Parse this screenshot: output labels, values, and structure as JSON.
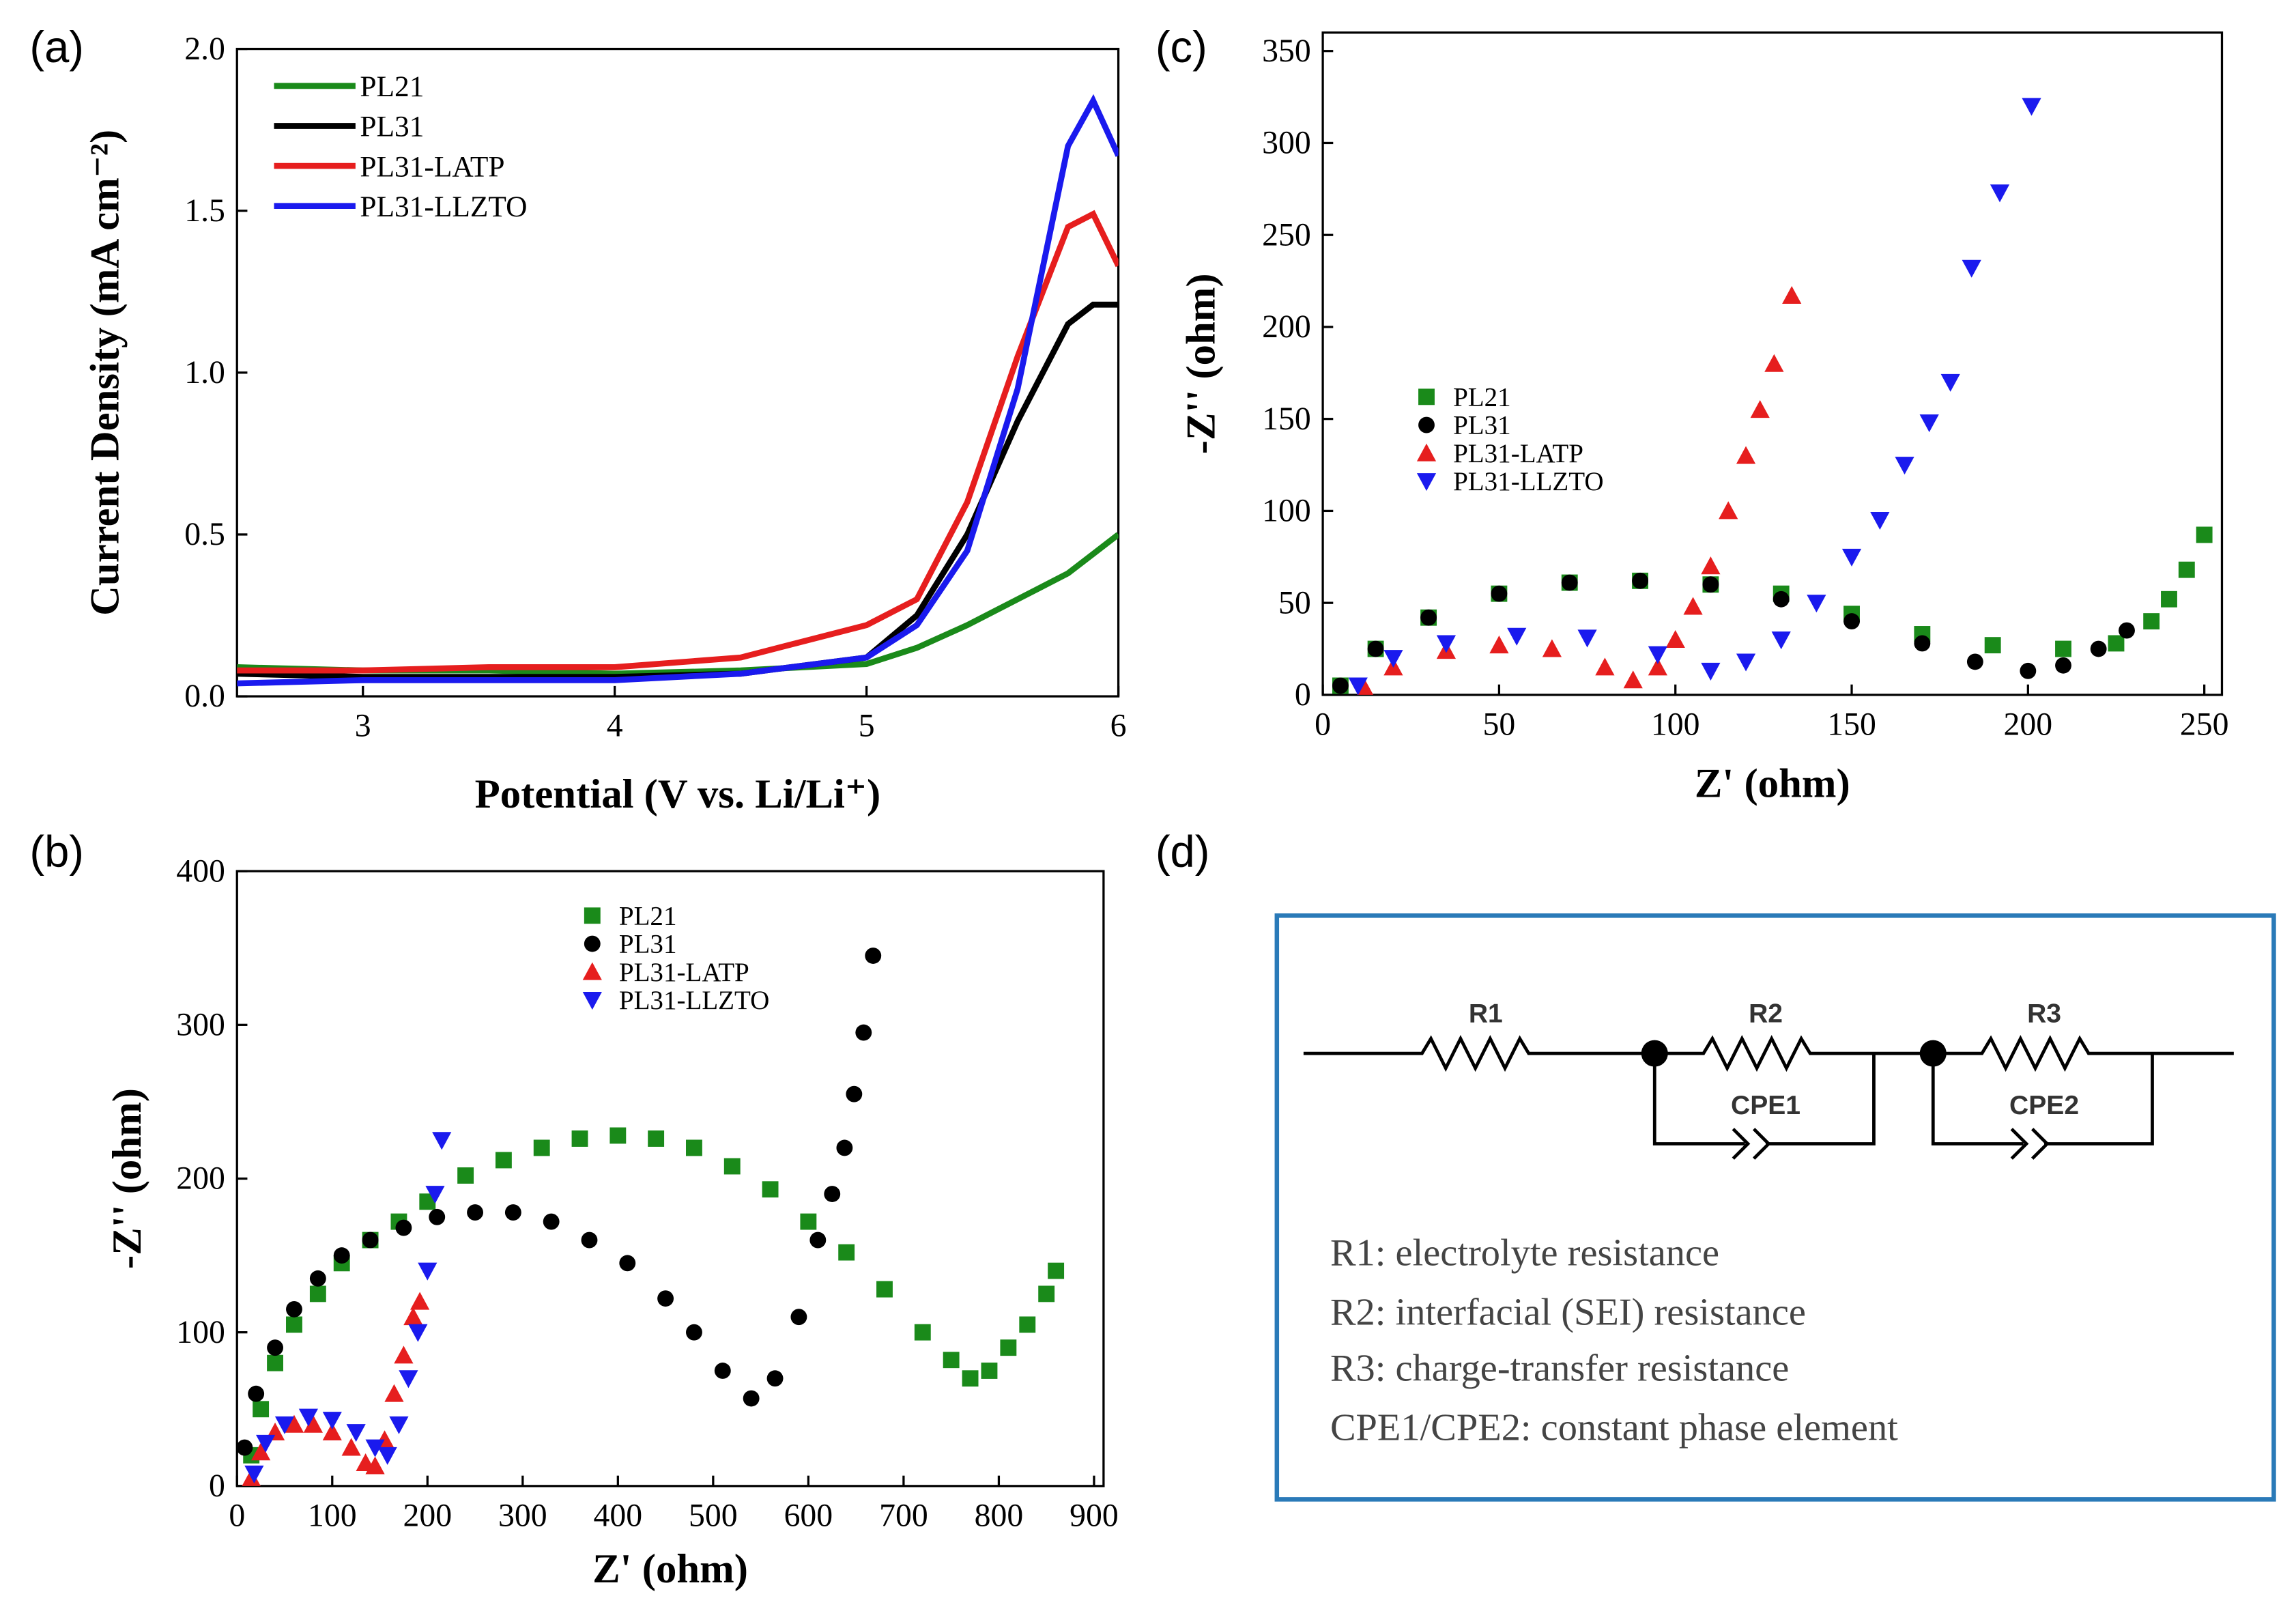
{
  "chart_data": [
    {
      "type": "line",
      "panel_label": "(a)",
      "xlabel": "Potential (V vs. Li/Li⁺)",
      "ylabel": "Current Density (mA cm⁻²)",
      "xlim": [
        2.5,
        6
      ],
      "ylim": [
        0,
        2
      ],
      "xticks": [
        3,
        4,
        5,
        6
      ],
      "yticks": [
        {
          "value": 0,
          "label": "0.0"
        },
        0.5,
        {
          "value": 1,
          "label": "1.0"
        },
        1.5,
        {
          "value": 2,
          "label": "2.0"
        }
      ],
      "legend": "upper left",
      "x": [
        2.5,
        3,
        3.5,
        4,
        4.5,
        5,
        5.2,
        5.4,
        5.6,
        5.8,
        5.9,
        6
      ],
      "series": [
        {
          "name": "PL21",
          "color": "#1a8a1a",
          "values": [
            0.09,
            0.08,
            0.08,
            0.07,
            0.08,
            0.1,
            0.15,
            0.22,
            0.3,
            0.38,
            0.44,
            0.5
          ]
        },
        {
          "name": "PL31",
          "color": "#000000",
          "values": [
            0.07,
            0.06,
            0.06,
            0.06,
            0.07,
            0.12,
            0.25,
            0.5,
            0.85,
            1.15,
            1.21,
            1.21
          ]
        },
        {
          "name": "PL31-LATP",
          "color": "#e61e1e",
          "values": [
            0.08,
            0.08,
            0.09,
            0.09,
            0.12,
            0.22,
            0.3,
            0.6,
            1.05,
            1.45,
            1.49,
            1.33
          ]
        },
        {
          "name": "PL31-LLZTO",
          "color": "#1a1aee",
          "values": [
            0.04,
            0.05,
            0.05,
            0.05,
            0.07,
            0.12,
            0.22,
            0.45,
            0.95,
            1.7,
            1.84,
            1.67
          ]
        }
      ]
    },
    {
      "type": "scatter",
      "panel_label": "(b)",
      "xlabel": "Z' (ohm)",
      "ylabel": "-Z'' (ohm)",
      "xlim": [
        0,
        910
      ],
      "ylim": [
        0,
        400
      ],
      "xticks": [
        0,
        100,
        200,
        300,
        400,
        500,
        600,
        700,
        800,
        900
      ],
      "yticks": [
        0,
        100,
        200,
        300,
        400
      ],
      "legend": "upper center",
      "series": [
        {
          "name": "PL21",
          "color": "#1a8a1a",
          "marker": "square",
          "x": [
            15,
            25,
            40,
            60,
            85,
            110,
            140,
            170,
            200,
            240,
            280,
            320,
            360,
            400,
            440,
            480,
            520,
            560,
            600,
            640,
            680,
            720,
            750,
            770,
            790,
            810,
            830,
            850,
            860
          ],
          "values": [
            20,
            50,
            80,
            105,
            125,
            145,
            160,
            172,
            185,
            202,
            212,
            220,
            226,
            228,
            226,
            220,
            208,
            193,
            172,
            152,
            128,
            100,
            82,
            70,
            75,
            90,
            105,
            125,
            140
          ]
        },
        {
          "name": "PL31",
          "color": "#000000",
          "marker": "circle",
          "x": [
            8,
            20,
            40,
            60,
            85,
            110,
            140,
            175,
            210,
            250,
            290,
            330,
            370,
            410,
            450,
            480,
            510,
            540,
            565,
            590,
            610,
            625,
            638,
            648,
            658,
            668
          ],
          "values": [
            25,
            60,
            90,
            115,
            135,
            150,
            160,
            168,
            175,
            178,
            178,
            172,
            160,
            145,
            122,
            100,
            75,
            57,
            70,
            110,
            160,
            190,
            220,
            255,
            295,
            345
          ]
        },
        {
          "name": "PL31-LATP",
          "color": "#e61e1e",
          "marker": "triangle-up",
          "x": [
            15,
            25,
            40,
            60,
            80,
            100,
            120,
            135,
            145,
            155,
            165,
            175,
            185,
            192
          ],
          "values": [
            5,
            22,
            35,
            40,
            40,
            35,
            25,
            15,
            13,
            30,
            60,
            85,
            110,
            120
          ]
        },
        {
          "name": "PL31-LLZTO",
          "color": "#1a1aee",
          "marker": "triangle-down",
          "x": [
            18,
            30,
            50,
            75,
            100,
            125,
            145,
            158,
            170,
            180,
            190,
            200,
            208,
            215
          ],
          "values": [
            8,
            28,
            40,
            45,
            43,
            35,
            25,
            20,
            40,
            70,
            100,
            140,
            190,
            225
          ]
        }
      ]
    },
    {
      "type": "scatter",
      "panel_label": "(c)",
      "xlabel": "Z' (ohm)",
      "ylabel": "-Z'' (ohm)",
      "xlim": [
        0,
        255
      ],
      "ylim": [
        0,
        360
      ],
      "xticks": [
        0,
        50,
        100,
        150,
        200,
        250
      ],
      "yticks": [
        0,
        50,
        100,
        150,
        200,
        250,
        300,
        350
      ],
      "legend": "center left",
      "series": [
        {
          "name": "PL21",
          "color": "#1a8a1a",
          "marker": "square",
          "x": [
            5,
            15,
            30,
            50,
            70,
            90,
            110,
            130,
            150,
            170,
            190,
            210,
            225,
            235,
            240,
            245,
            250
          ],
          "values": [
            5,
            25,
            42,
            55,
            61,
            62,
            60,
            55,
            44,
            33,
            27,
            25,
            28,
            40,
            52,
            68,
            87
          ]
        },
        {
          "name": "PL31",
          "color": "#000000",
          "marker": "circle",
          "x": [
            5,
            15,
            30,
            50,
            70,
            90,
            110,
            130,
            150,
            170,
            185,
            200,
            210,
            220,
            228
          ],
          "values": [
            5,
            25,
            42,
            55,
            61,
            62,
            60,
            52,
            40,
            28,
            18,
            13,
            16,
            25,
            35
          ]
        },
        {
          "name": "PL31-LATP",
          "color": "#e61e1e",
          "marker": "triangle-up",
          "x": [
            12,
            20,
            35,
            50,
            65,
            80,
            88,
            95,
            100,
            105,
            110,
            115,
            120,
            124,
            128,
            133
          ],
          "values": [
            3,
            15,
            24,
            27,
            25,
            15,
            8,
            15,
            30,
            48,
            70,
            100,
            130,
            155,
            180,
            217
          ]
        },
        {
          "name": "PL31-LLZTO",
          "color": "#1a1aee",
          "marker": "triangle-down",
          "x": [
            10,
            20,
            35,
            55,
            75,
            95,
            110,
            120,
            130,
            140,
            150,
            158,
            165,
            172,
            178,
            184,
            192,
            201
          ],
          "values": [
            5,
            20,
            28,
            32,
            31,
            22,
            13,
            18,
            30,
            50,
            75,
            95,
            125,
            148,
            170,
            232,
            273,
            320
          ]
        }
      ]
    }
  ],
  "diagram": {
    "panel_label": "(d)",
    "components": {
      "r1": "R1",
      "r2": "R2",
      "r3": "R3",
      "cpe1": "CPE1",
      "cpe2": "CPE2"
    },
    "notes": [
      "R1: electrolyte resistance",
      "R2: interfacial (SEI) resistance",
      "R3: charge-transfer resistance",
      "CPE1/CPE2: constant phase element"
    ]
  }
}
